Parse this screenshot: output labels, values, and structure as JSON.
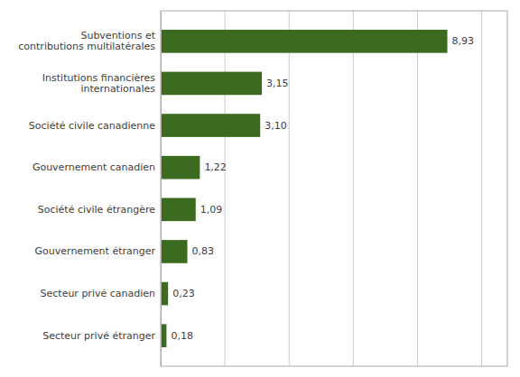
{
  "chart_data": {
    "type": "bar",
    "orientation": "horizontal",
    "categories": [
      "Secteur privé étranger",
      "Secteur privé canadien",
      "Gouvernement étranger",
      "Société civile étrangère",
      "Gouvernement canadien",
      "Société civile canadienne",
      "Institutions financières\ninternationales",
      "Subventions et\ncontributions multilatérales"
    ],
    "values": [
      0.18,
      0.23,
      0.83,
      1.09,
      1.22,
      3.1,
      3.15,
      8.93
    ],
    "value_labels": [
      "0,18",
      "0,23",
      "0,83",
      "1,09",
      "1,22",
      "3,10",
      "3,15",
      "8,93"
    ],
    "data_labels": true,
    "color": "#3a6b1e",
    "xlim": [
      0,
      10.8
    ],
    "xticks": [
      0,
      2,
      4,
      6,
      8,
      10
    ],
    "grid": true,
    "tick_labels": "y"
  }
}
